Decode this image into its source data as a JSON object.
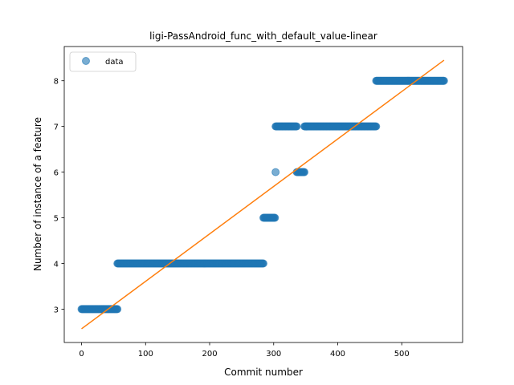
{
  "chart_data": {
    "type": "scatter",
    "title": "ligi-PassAndroid_func_with_default_value-linear",
    "xlabel": "Commit number",
    "ylabel": "Number of instance of a feature",
    "xlim": [
      -27,
      595
    ],
    "ylim": [
      2.27,
      8.75
    ],
    "xticks": [
      0,
      100,
      200,
      300,
      400,
      500
    ],
    "yticks": [
      3,
      4,
      5,
      6,
      7,
      8
    ],
    "legend": {
      "entries": [
        "data"
      ],
      "placement": "top-left"
    },
    "colors": {
      "data": "#1f77b4",
      "fit": "#ff7f0e"
    },
    "series": [
      {
        "name": "data",
        "kind": "points",
        "segments": [
          {
            "x_start": 0,
            "x_end": 56,
            "y": 3
          },
          {
            "x_start": 56,
            "x_end": 284,
            "y": 4
          },
          {
            "x_start": 284,
            "x_end": 302,
            "y": 5
          },
          {
            "x_start": 303,
            "x_end": 303,
            "y": 6
          },
          {
            "x_start": 303,
            "x_end": 336,
            "y": 7
          },
          {
            "x_start": 336,
            "x_end": 348,
            "y": 6
          },
          {
            "x_start": 348,
            "x_end": 460,
            "y": 7
          },
          {
            "x_start": 460,
            "x_end": 566,
            "y": 8
          }
        ]
      },
      {
        "kind": "line",
        "x": [
          0,
          566
        ],
        "y": [
          2.57,
          8.45
        ]
      }
    ]
  }
}
